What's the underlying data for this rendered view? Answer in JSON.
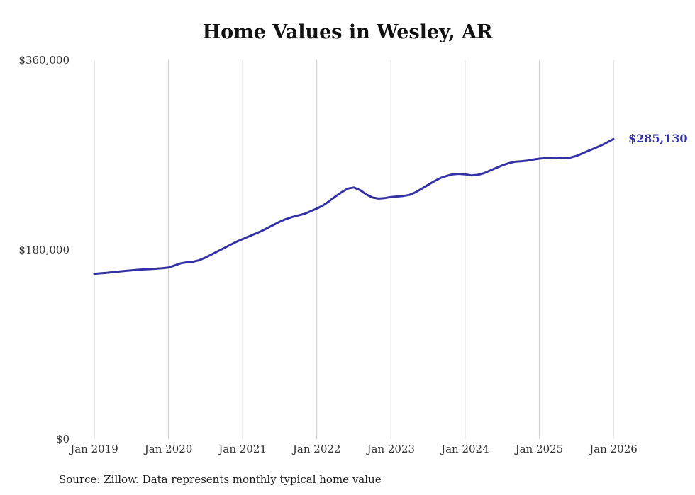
{
  "chart": {
    "title": "Home Values in Wesley, AR",
    "source": "Source: Zillow. Data represents monthly typical home value",
    "end_label": "$285,130"
  },
  "chart_data": {
    "type": "line",
    "title": "Home Values in Wesley, AR",
    "series_name": "Monthly typical home value",
    "x_tick_labels": [
      "Jan 2019",
      "Jan 2020",
      "Jan 2021",
      "Jan 2022",
      "Jan 2023",
      "Jan 2024",
      "Jan 2025",
      "Jan 2026"
    ],
    "y_ticks": [
      0,
      180000,
      360000
    ],
    "y_tick_labels": [
      "$0",
      "$180,000",
      "$360,000"
    ],
    "ylim": [
      0,
      360000
    ],
    "grid": "vertical-only",
    "legend": "none",
    "line_color": "#3431a4",
    "grid_color": "#cccccc",
    "final_value": 285130,
    "values": [
      157000,
      157500,
      158000,
      158600,
      159200,
      159800,
      160300,
      160800,
      161200,
      161500,
      161900,
      162400,
      163000,
      165000,
      167000,
      168000,
      168500,
      170000,
      172500,
      175500,
      178500,
      181500,
      184500,
      187500,
      190000,
      192500,
      195000,
      197500,
      200500,
      203500,
      206500,
      209000,
      211000,
      212500,
      214000,
      216500,
      219000,
      222000,
      226000,
      230500,
      234500,
      238000,
      239000,
      236500,
      232500,
      229500,
      228500,
      229000,
      230000,
      230500,
      231000,
      232000,
      234500,
      238000,
      241500,
      245000,
      248000,
      250000,
      251500,
      252000,
      251500,
      250500,
      251000,
      252500,
      255000,
      257500,
      260000,
      262000,
      263500,
      264000,
      264500,
      265500,
      266500,
      267000,
      267000,
      267500,
      267000,
      267500,
      269000,
      271500,
      274000,
      276500,
      279000,
      282000,
      285130
    ]
  }
}
